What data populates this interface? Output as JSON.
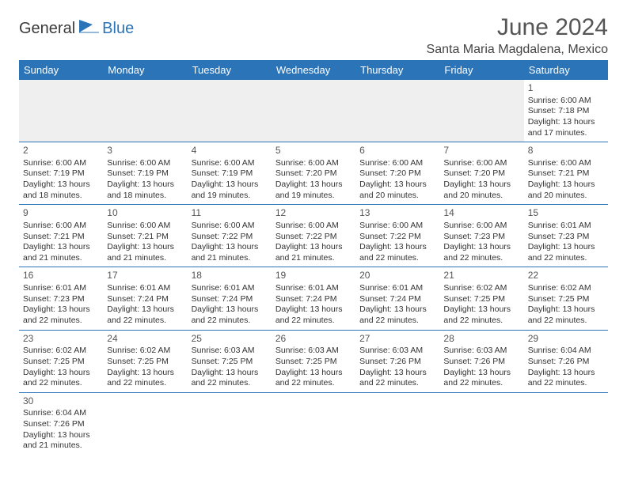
{
  "brand": {
    "part1": "General",
    "part2": "Blue"
  },
  "title": "June 2024",
  "location": "Santa Maria Magdalena, Mexico",
  "columns": [
    "Sunday",
    "Monday",
    "Tuesday",
    "Wednesday",
    "Thursday",
    "Friday",
    "Saturday"
  ],
  "colors": {
    "header_bg": "#2b74b8",
    "header_text": "#ffffff",
    "border": "#2b74b8",
    "blank_bg": "#efefef",
    "text": "#333333",
    "title_text": "#555555"
  },
  "weeks": [
    [
      null,
      null,
      null,
      null,
      null,
      null,
      {
        "n": "1",
        "sr": "Sunrise: 6:00 AM",
        "ss": "Sunset: 7:18 PM",
        "d1": "Daylight: 13 hours",
        "d2": "and 17 minutes."
      }
    ],
    [
      {
        "n": "2",
        "sr": "Sunrise: 6:00 AM",
        "ss": "Sunset: 7:19 PM",
        "d1": "Daylight: 13 hours",
        "d2": "and 18 minutes."
      },
      {
        "n": "3",
        "sr": "Sunrise: 6:00 AM",
        "ss": "Sunset: 7:19 PM",
        "d1": "Daylight: 13 hours",
        "d2": "and 18 minutes."
      },
      {
        "n": "4",
        "sr": "Sunrise: 6:00 AM",
        "ss": "Sunset: 7:19 PM",
        "d1": "Daylight: 13 hours",
        "d2": "and 19 minutes."
      },
      {
        "n": "5",
        "sr": "Sunrise: 6:00 AM",
        "ss": "Sunset: 7:20 PM",
        "d1": "Daylight: 13 hours",
        "d2": "and 19 minutes."
      },
      {
        "n": "6",
        "sr": "Sunrise: 6:00 AM",
        "ss": "Sunset: 7:20 PM",
        "d1": "Daylight: 13 hours",
        "d2": "and 20 minutes."
      },
      {
        "n": "7",
        "sr": "Sunrise: 6:00 AM",
        "ss": "Sunset: 7:20 PM",
        "d1": "Daylight: 13 hours",
        "d2": "and 20 minutes."
      },
      {
        "n": "8",
        "sr": "Sunrise: 6:00 AM",
        "ss": "Sunset: 7:21 PM",
        "d1": "Daylight: 13 hours",
        "d2": "and 20 minutes."
      }
    ],
    [
      {
        "n": "9",
        "sr": "Sunrise: 6:00 AM",
        "ss": "Sunset: 7:21 PM",
        "d1": "Daylight: 13 hours",
        "d2": "and 21 minutes."
      },
      {
        "n": "10",
        "sr": "Sunrise: 6:00 AM",
        "ss": "Sunset: 7:21 PM",
        "d1": "Daylight: 13 hours",
        "d2": "and 21 minutes."
      },
      {
        "n": "11",
        "sr": "Sunrise: 6:00 AM",
        "ss": "Sunset: 7:22 PM",
        "d1": "Daylight: 13 hours",
        "d2": "and 21 minutes."
      },
      {
        "n": "12",
        "sr": "Sunrise: 6:00 AM",
        "ss": "Sunset: 7:22 PM",
        "d1": "Daylight: 13 hours",
        "d2": "and 21 minutes."
      },
      {
        "n": "13",
        "sr": "Sunrise: 6:00 AM",
        "ss": "Sunset: 7:22 PM",
        "d1": "Daylight: 13 hours",
        "d2": "and 22 minutes."
      },
      {
        "n": "14",
        "sr": "Sunrise: 6:00 AM",
        "ss": "Sunset: 7:23 PM",
        "d1": "Daylight: 13 hours",
        "d2": "and 22 minutes."
      },
      {
        "n": "15",
        "sr": "Sunrise: 6:01 AM",
        "ss": "Sunset: 7:23 PM",
        "d1": "Daylight: 13 hours",
        "d2": "and 22 minutes."
      }
    ],
    [
      {
        "n": "16",
        "sr": "Sunrise: 6:01 AM",
        "ss": "Sunset: 7:23 PM",
        "d1": "Daylight: 13 hours",
        "d2": "and 22 minutes."
      },
      {
        "n": "17",
        "sr": "Sunrise: 6:01 AM",
        "ss": "Sunset: 7:24 PM",
        "d1": "Daylight: 13 hours",
        "d2": "and 22 minutes."
      },
      {
        "n": "18",
        "sr": "Sunrise: 6:01 AM",
        "ss": "Sunset: 7:24 PM",
        "d1": "Daylight: 13 hours",
        "d2": "and 22 minutes."
      },
      {
        "n": "19",
        "sr": "Sunrise: 6:01 AM",
        "ss": "Sunset: 7:24 PM",
        "d1": "Daylight: 13 hours",
        "d2": "and 22 minutes."
      },
      {
        "n": "20",
        "sr": "Sunrise: 6:01 AM",
        "ss": "Sunset: 7:24 PM",
        "d1": "Daylight: 13 hours",
        "d2": "and 22 minutes."
      },
      {
        "n": "21",
        "sr": "Sunrise: 6:02 AM",
        "ss": "Sunset: 7:25 PM",
        "d1": "Daylight: 13 hours",
        "d2": "and 22 minutes."
      },
      {
        "n": "22",
        "sr": "Sunrise: 6:02 AM",
        "ss": "Sunset: 7:25 PM",
        "d1": "Daylight: 13 hours",
        "d2": "and 22 minutes."
      }
    ],
    [
      {
        "n": "23",
        "sr": "Sunrise: 6:02 AM",
        "ss": "Sunset: 7:25 PM",
        "d1": "Daylight: 13 hours",
        "d2": "and 22 minutes."
      },
      {
        "n": "24",
        "sr": "Sunrise: 6:02 AM",
        "ss": "Sunset: 7:25 PM",
        "d1": "Daylight: 13 hours",
        "d2": "and 22 minutes."
      },
      {
        "n": "25",
        "sr": "Sunrise: 6:03 AM",
        "ss": "Sunset: 7:25 PM",
        "d1": "Daylight: 13 hours",
        "d2": "and 22 minutes."
      },
      {
        "n": "26",
        "sr": "Sunrise: 6:03 AM",
        "ss": "Sunset: 7:25 PM",
        "d1": "Daylight: 13 hours",
        "d2": "and 22 minutes."
      },
      {
        "n": "27",
        "sr": "Sunrise: 6:03 AM",
        "ss": "Sunset: 7:26 PM",
        "d1": "Daylight: 13 hours",
        "d2": "and 22 minutes."
      },
      {
        "n": "28",
        "sr": "Sunrise: 6:03 AM",
        "ss": "Sunset: 7:26 PM",
        "d1": "Daylight: 13 hours",
        "d2": "and 22 minutes."
      },
      {
        "n": "29",
        "sr": "Sunrise: 6:04 AM",
        "ss": "Sunset: 7:26 PM",
        "d1": "Daylight: 13 hours",
        "d2": "and 22 minutes."
      }
    ],
    [
      {
        "n": "30",
        "sr": "Sunrise: 6:04 AM",
        "ss": "Sunset: 7:26 PM",
        "d1": "Daylight: 13 hours",
        "d2": "and 21 minutes."
      },
      null,
      null,
      null,
      null,
      null,
      null
    ]
  ]
}
